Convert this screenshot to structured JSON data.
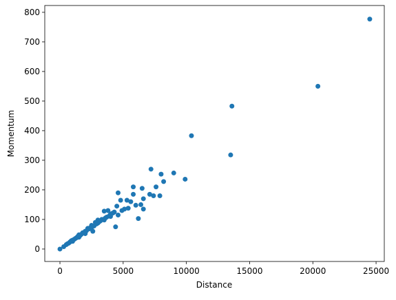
{
  "chart_data": {
    "type": "scatter",
    "x_label": "Distance",
    "y_label": "Momentum",
    "color": "#1f77b4",
    "x": [
      24500,
      20400,
      13600,
      13500,
      10400,
      9900,
      9000,
      8200,
      8000,
      7900,
      7600,
      7400,
      7200,
      7100,
      6600,
      6500,
      6600,
      6200,
      6400,
      6000,
      5800,
      5800,
      5600,
      5400,
      5300,
      5100,
      4900,
      4800,
      4600,
      4600,
      4400,
      4500,
      4300,
      4000,
      3800,
      3500,
      3300,
      3000,
      2800,
      2600,
      2500,
      2200,
      2000,
      1800,
      1500,
      1200,
      900,
      700,
      500,
      300,
      0,
      600,
      800,
      1000,
      1100,
      1300,
      1400,
      1600,
      1700,
      1900,
      2100,
      2300,
      2400,
      2700,
      2900,
      3100,
      3200,
      3400,
      3600,
      3700,
      3900,
      4100,
      4200,
      1500,
      2000,
      2500,
      3000,
      3500,
      4000,
      1000
    ],
    "y": [
      777,
      550,
      483,
      318,
      383,
      236,
      257,
      228,
      253,
      180,
      210,
      180,
      270,
      185,
      170,
      205,
      135,
      103,
      150,
      148,
      210,
      185,
      160,
      138,
      165,
      135,
      130,
      165,
      190,
      115,
      75,
      145,
      125,
      118,
      130,
      128,
      100,
      98,
      90,
      60,
      80,
      70,
      60,
      55,
      40,
      35,
      28,
      20,
      15,
      8,
      0,
      18,
      24,
      30,
      32,
      38,
      42,
      46,
      50,
      56,
      62,
      68,
      72,
      78,
      85,
      92,
      95,
      100,
      105,
      108,
      112,
      120,
      122,
      48,
      52,
      72,
      88,
      98,
      110,
      26
    ],
    "xlim": [
      -1200,
      25650
    ],
    "ylim": [
      -42,
      823
    ],
    "xticks": [
      0,
      5000,
      10000,
      15000,
      20000,
      25000
    ],
    "yticks": [
      0,
      100,
      200,
      300,
      400,
      500,
      600,
      700,
      800
    ]
  }
}
